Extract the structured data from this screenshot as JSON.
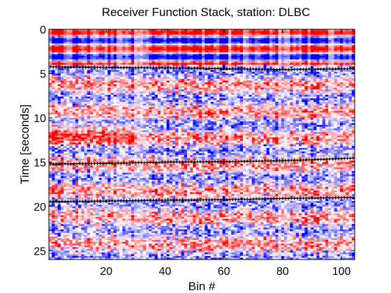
{
  "chart_data": {
    "type": "heatmap",
    "title": "Receiver Function Stack,  station: DLBC",
    "xlabel": "Bin #",
    "ylabel": "Time [seconds]",
    "xlim": [
      0.5,
      104.5
    ],
    "ylim": [
      0,
      26
    ],
    "y_direction": "reversed",
    "x_ticks": [
      20,
      40,
      60,
      80,
      100
    ],
    "y_ticks": [
      0,
      5,
      10,
      15,
      20,
      25
    ],
    "colormap": "blue-white-red",
    "colors": {
      "positive": "#ff0000",
      "negative": "#0000ff",
      "zero": "#ffffff",
      "pick_line": "#000000"
    },
    "bins": 104,
    "time_samples": 130,
    "grid": false,
    "legend": "none",
    "pick_curves": [
      {
        "label": "",
        "bins": [
          1,
          20,
          40,
          60,
          80,
          104
        ],
        "times": [
          4.25,
          4.3,
          4.35,
          4.45,
          4.55,
          4.45
        ]
      },
      {
        "label": "",
        "bins": [
          1,
          20,
          40,
          60,
          80,
          104
        ],
        "times": [
          15.2,
          15.15,
          15.0,
          14.95,
          14.85,
          14.55
        ]
      },
      {
        "label": "",
        "bins": [
          1,
          20,
          40,
          60,
          80,
          104
        ],
        "times": [
          19.45,
          19.4,
          19.3,
          19.25,
          19.1,
          19.0
        ]
      }
    ]
  }
}
